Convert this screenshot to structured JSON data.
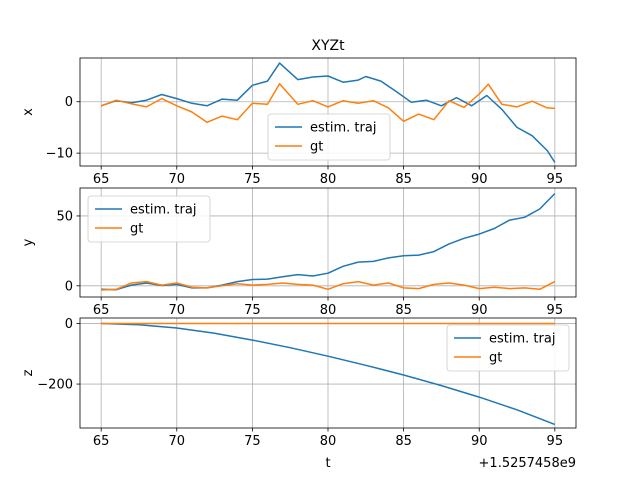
{
  "colors": {
    "series_0": "#1f77b4",
    "series_1": "#ff7f0e",
    "grid": "#b0b0b0",
    "axis": "#000000",
    "legend_border": "#cccccc"
  },
  "chart_data": {
    "type": "line",
    "title": "XYZt",
    "shared_x": {
      "label": "t",
      "offset_text": "+1.5257458e9",
      "ticks": [
        65,
        70,
        75,
        80,
        85,
        90,
        95
      ],
      "tick_labels": [
        "65",
        "70",
        "75",
        "80",
        "85",
        "90",
        "95"
      ],
      "xlim": [
        63.6,
        96.4
      ]
    },
    "grid": true,
    "subplots": [
      {
        "ylabel": "x",
        "ylim": [
          -12.5,
          8.5
        ],
        "yticks": [
          -10,
          0
        ],
        "ytick_labels": [
          "−10",
          "0"
        ],
        "legend": "lower-center",
        "series": [
          {
            "name": "estim. traj",
            "color": "#1f77b4",
            "x": [
              65,
              66,
              67,
              68,
              69,
              70,
              71,
              72,
              73,
              74,
              75,
              76,
              76.8,
              78,
              79,
              80,
              81,
              82,
              82.5,
              83.5,
              84.5,
              85.5,
              86.5,
              87.5,
              88.5,
              89.5,
              90.5,
              91.5,
              92.5,
              93.5,
              94.5,
              95
            ],
            "y": [
              -0.8,
              0.2,
              -0.2,
              0.3,
              1.4,
              0.6,
              -0.3,
              -0.8,
              0.5,
              0.3,
              3.2,
              4.0,
              7.5,
              4.3,
              4.8,
              5.0,
              3.8,
              4.2,
              4.9,
              4.0,
              2.0,
              -0.1,
              0.3,
              -0.8,
              0.8,
              -0.8,
              1.2,
              -1.5,
              -5.0,
              -6.6,
              -9.5,
              -11.8
            ]
          },
          {
            "name": "gt",
            "color": "#ff7f0e",
            "x": [
              65,
              66,
              67,
              68,
              69,
              70,
              71,
              72,
              73,
              74,
              75,
              76,
              76.8,
              78,
              79,
              80,
              81,
              82,
              83,
              84,
              85,
              86,
              87,
              88,
              89,
              90,
              90.6,
              91.5,
              92.5,
              93.5,
              94.5,
              95
            ],
            "y": [
              -0.8,
              0.3,
              -0.4,
              -1.0,
              0.6,
              -0.8,
              -2.0,
              -4.0,
              -2.8,
              -3.5,
              -0.3,
              -0.5,
              3.5,
              -0.5,
              0.2,
              -1.0,
              0.2,
              -0.3,
              0.2,
              -1.2,
              -3.8,
              -2.4,
              -3.5,
              0.2,
              -1.1,
              1.5,
              3.4,
              -0.5,
              -1.0,
              0.1,
              -1.2,
              -1.3
            ]
          }
        ]
      },
      {
        "ylabel": "y",
        "ylim": [
          -8,
          70
        ],
        "yticks": [
          0,
          50
        ],
        "ytick_labels": [
          "0",
          "50"
        ],
        "legend": "upper-left",
        "series": [
          {
            "name": "estim. traj",
            "color": "#1f77b4",
            "x": [
              65,
              66,
              67,
              68,
              69,
              70,
              71,
              72,
              73,
              74,
              75,
              76,
              77,
              78,
              79,
              80,
              81,
              82,
              83,
              84,
              85,
              86,
              87,
              88,
              89,
              90,
              91,
              92,
              93,
              94,
              95
            ],
            "y": [
              -2.5,
              -2.8,
              0.5,
              2.0,
              0.2,
              1.0,
              -1.5,
              -1.5,
              0.5,
              3.0,
              4.5,
              4.8,
              6.5,
              8.0,
              7.0,
              9.0,
              14.0,
              17.0,
              17.5,
              20.0,
              21.5,
              22.0,
              24.5,
              30.0,
              34.0,
              37.0,
              41.0,
              47.0,
              49.0,
              55.0,
              66.0
            ]
          },
          {
            "name": "gt",
            "color": "#ff7f0e",
            "x": [
              65,
              66,
              67,
              68,
              69,
              70,
              71,
              72,
              73,
              74,
              75,
              76,
              77,
              78,
              79,
              80,
              81,
              82,
              83,
              84,
              85,
              86,
              87,
              88,
              89,
              90,
              91,
              92,
              93,
              94,
              95
            ],
            "y": [
              -3.0,
              -2.5,
              2.0,
              3.0,
              0.5,
              2.0,
              -1.0,
              -1.5,
              0.0,
              1.5,
              0.5,
              1.0,
              2.0,
              1.0,
              0.5,
              -2.5,
              1.5,
              3.0,
              0.5,
              2.0,
              -1.5,
              -2.0,
              1.0,
              2.0,
              0.5,
              -2.0,
              -1.0,
              -2.0,
              -1.5,
              -2.5,
              3.0
            ]
          }
        ]
      },
      {
        "ylabel": "z",
        "ylim": [
          -345,
          18
        ],
        "yticks": [
          -200,
          0
        ],
        "ytick_labels": [
          "−200",
          "0"
        ],
        "legend": "upper-right",
        "series": [
          {
            "name": "estim. traj",
            "color": "#1f77b4",
            "x": [
              65,
              67.5,
              70,
              72.5,
              75,
              77.5,
              80,
              82.5,
              85,
              87.5,
              90,
              92.5,
              95
            ],
            "y": [
              0,
              -4,
              -15,
              -32,
              -55,
              -80,
              -108,
              -138,
              -170,
              -205,
              -243,
              -285,
              -333
            ]
          },
          {
            "name": "gt",
            "color": "#ff7f0e",
            "x": [
              65,
              95
            ],
            "y": [
              0,
              0
            ]
          }
        ]
      }
    ]
  }
}
